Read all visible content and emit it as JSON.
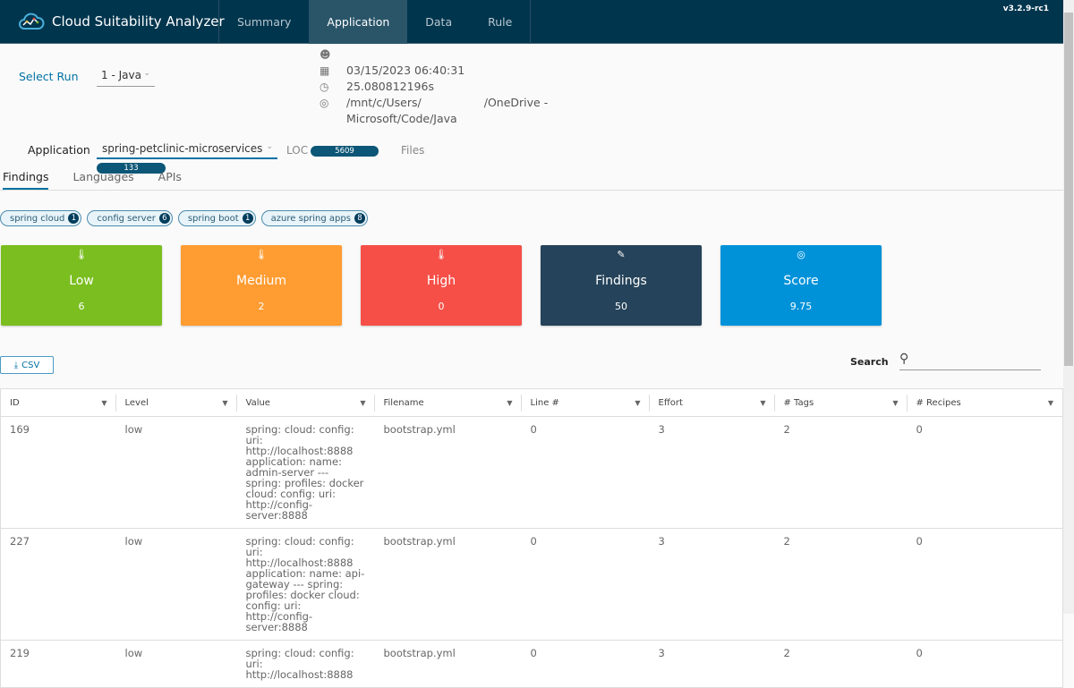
{
  "header": {
    "title": "Cloud Suitability Analyzer",
    "nav": [
      "Summary",
      "Application",
      "Data",
      "Rule"
    ],
    "active": "Application",
    "version": "v3.2.9-rc1"
  },
  "run": {
    "label": "Select Run",
    "value": "1 - Java"
  },
  "meta": {
    "user": "",
    "date": "03/15/2023 06:40:31",
    "duration": "25.080812196s",
    "path_1": "/mnt/c/Users/",
    "path_2": "/OneDrive -",
    "path_3": "Microsoft/Code/Java"
  },
  "application": {
    "label": "Application",
    "value": "spring-petclinic-microservices",
    "loc_label": "LOC",
    "loc": "5609",
    "files_label": "Files",
    "files": "133"
  },
  "tabs": [
    "Findings",
    "Languages",
    "APIs"
  ],
  "tags": [
    {
      "label": "spring cloud",
      "count": "1"
    },
    {
      "label": "config server",
      "count": "6"
    },
    {
      "label": "spring boot",
      "count": "1"
    },
    {
      "label": "azure spring apps",
      "count": "8"
    }
  ],
  "cards": [
    {
      "label": "Low",
      "value": "6",
      "color": "#7bbe20"
    },
    {
      "label": "Medium",
      "value": "2",
      "color": "#ff9c32"
    },
    {
      "label": "High",
      "value": "0",
      "color": "#f54f47"
    },
    {
      "label": "Findings",
      "value": "50",
      "color": "#25435a"
    },
    {
      "label": "Score",
      "value": "9.75",
      "color": "#0092d9"
    }
  ],
  "csv_label": "CSV",
  "search": {
    "label": "Search",
    "value": ""
  },
  "table": {
    "columns": [
      "ID",
      "Level",
      "Value",
      "Filename",
      "Line #",
      "Effort",
      "# Tags",
      "# Recipes"
    ],
    "rows": [
      [
        "169",
        "low",
        "spring: cloud: config: uri: http://localhost:8888 application: name: admin-server --- spring: profiles: docker cloud: config: uri: http://config-server:8888",
        "bootstrap.yml",
        "0",
        "3",
        "2",
        "0"
      ],
      [
        "227",
        "low",
        "spring: cloud: config: uri: http://localhost:8888 application: name: api-gateway --- spring: profiles: docker cloud: config: uri: http://config-server:8888",
        "bootstrap.yml",
        "0",
        "3",
        "2",
        "0"
      ],
      [
        "219",
        "low",
        "spring: cloud: config: uri: http://localhost:8888",
        "bootstrap.yml",
        "0",
        "3",
        "2",
        "0"
      ]
    ]
  }
}
